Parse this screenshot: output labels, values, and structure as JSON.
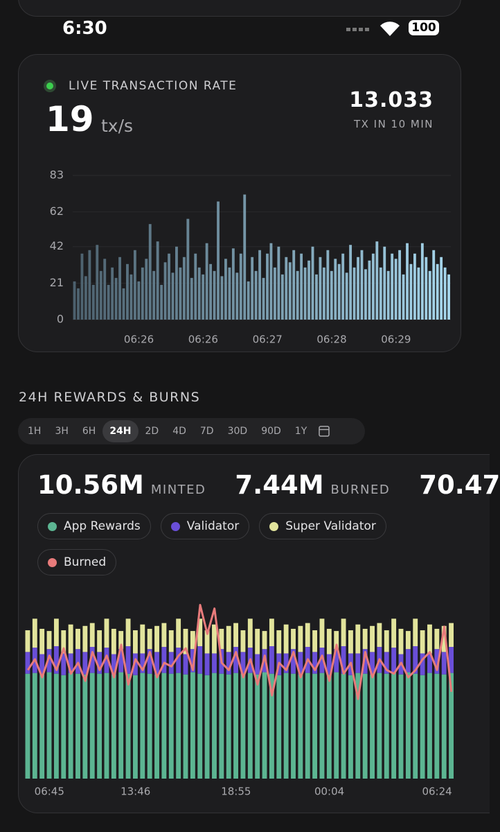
{
  "status_bar": {
    "time": "6:30",
    "battery": "100"
  },
  "live_card": {
    "title": "LIVE TRANSACTION RATE",
    "rate": "19",
    "rate_unit": "tx/s",
    "count": "13.033",
    "count_label": "TX IN 10 MIN"
  },
  "section_title": "24H REWARDS & BURNS",
  "tabs": {
    "items": [
      "1H",
      "3H",
      "6H",
      "24H",
      "2D",
      "4D",
      "7D",
      "30D",
      "90D",
      "1Y"
    ],
    "selected": 3
  },
  "stats": [
    {
      "value": "10.56M",
      "label": "MINTED"
    },
    {
      "value": "7.44M",
      "label": "BURNED"
    },
    {
      "value": "70.47"
    }
  ],
  "chart_data": [
    {
      "type": "bar",
      "colors": [
        "#4c606d",
        "#a6d6ec"
      ],
      "grid": true,
      "ylim": [
        0,
        83
      ],
      "yticks": [
        0,
        21,
        42,
        62,
        83
      ],
      "categories": [
        null,
        null,
        null,
        null,
        null,
        null,
        null,
        null,
        null,
        null,
        null,
        null,
        null,
        null,
        null,
        null,
        null,
        "06:26",
        null,
        null,
        null,
        null,
        null,
        null,
        null,
        null,
        null,
        null,
        null,
        null,
        null,
        null,
        null,
        null,
        "06:26",
        null,
        null,
        null,
        null,
        null,
        null,
        null,
        null,
        null,
        null,
        null,
        null,
        null,
        null,
        null,
        null,
        "06:27",
        null,
        null,
        null,
        null,
        null,
        null,
        null,
        null,
        null,
        null,
        null,
        null,
        null,
        null,
        null,
        null,
        "06:28",
        null,
        null,
        null,
        null,
        null,
        null,
        null,
        null,
        null,
        null,
        null,
        null,
        null,
        null,
        null,
        null,
        "06:29",
        null,
        null,
        null,
        null,
        null,
        null,
        null,
        null,
        null,
        null,
        null,
        null,
        null,
        null
      ],
      "values": [
        22,
        18,
        38,
        25,
        40,
        20,
        43,
        28,
        35,
        20,
        30,
        24,
        36,
        18,
        32,
        26,
        40,
        22,
        30,
        35,
        55,
        28,
        45,
        20,
        33,
        38,
        27,
        42,
        30,
        36,
        58,
        24,
        38,
        30,
        26,
        44,
        32,
        28,
        68,
        25,
        35,
        30,
        41,
        27,
        38,
        72,
        22,
        36,
        28,
        40,
        24,
        38,
        44,
        30,
        42,
        26,
        36,
        33,
        40,
        28,
        38,
        30,
        34,
        42,
        26,
        36,
        30,
        40,
        28,
        35,
        32,
        38,
        27,
        43,
        30,
        36,
        40,
        29,
        34,
        38,
        45,
        30,
        42,
        28,
        38,
        35,
        40,
        26,
        44,
        32,
        38,
        30,
        44,
        36,
        28,
        40,
        32,
        36,
        30,
        26
      ]
    },
    {
      "type": "stacked_bar",
      "categories": [
        null,
        null,
        null,
        "06:45",
        null,
        null,
        null,
        null,
        null,
        null,
        null,
        null,
        null,
        null,
        null,
        "13:46",
        null,
        null,
        null,
        null,
        null,
        null,
        null,
        null,
        null,
        null,
        null,
        null,
        null,
        "18:55",
        null,
        null,
        null,
        null,
        null,
        null,
        null,
        null,
        null,
        null,
        null,
        null,
        "00:04",
        null,
        null,
        null,
        null,
        null,
        null,
        null,
        null,
        null,
        null,
        null,
        null,
        null,
        null,
        "06:24",
        null,
        null
      ],
      "series": [
        {
          "name": "App Rewards",
          "color": "#5cb592",
          "values": [
            145,
            146,
            144,
            147,
            145,
            143,
            146,
            145,
            144,
            146,
            145,
            146,
            144,
            147,
            145,
            143,
            146,
            145,
            144,
            146,
            145,
            146,
            144,
            147,
            145,
            143,
            146,
            145,
            144,
            146,
            145,
            146,
            144,
            147,
            145,
            143,
            146,
            145,
            144,
            146,
            145,
            146,
            144,
            147,
            145,
            143,
            146,
            145,
            144,
            146,
            145,
            146,
            144,
            147,
            145,
            143,
            146,
            145,
            144,
            146
          ]
        },
        {
          "name": "Validator",
          "color": "#6a4fd8",
          "values": [
            30,
            35,
            28,
            32,
            38,
            30,
            27,
            34,
            31,
            36,
            30,
            35,
            28,
            32,
            38,
            30,
            27,
            34,
            31,
            36,
            30,
            35,
            28,
            32,
            38,
            30,
            27,
            34,
            31,
            36,
            30,
            35,
            28,
            32,
            38,
            30,
            27,
            34,
            31,
            36,
            30,
            35,
            28,
            32,
            38,
            30,
            27,
            34,
            31,
            36,
            30,
            35,
            28,
            32,
            38,
            30,
            27,
            34,
            31,
            36
          ]
        },
        {
          "name": "Super Validator",
          "color": "#e2e49c",
          "values": [
            30,
            40,
            35,
            25,
            38,
            32,
            40,
            28,
            36,
            33,
            30,
            40,
            35,
            25,
            38,
            32,
            40,
            28,
            36,
            33,
            30,
            40,
            35,
            25,
            38,
            32,
            40,
            28,
            36,
            33,
            30,
            40,
            35,
            25,
            38,
            32,
            40,
            28,
            36,
            33,
            30,
            40,
            35,
            25,
            38,
            32,
            40,
            28,
            36,
            33,
            30,
            40,
            35,
            25,
            38,
            32,
            40,
            28,
            36,
            33
          ]
        },
        {
          "name": "Burned",
          "color": "#e87b7b",
          "line": true,
          "values": [
            150,
            165,
            140,
            170,
            150,
            180,
            145,
            160,
            135,
            175,
            150,
            170,
            140,
            185,
            130,
            165,
            150,
            175,
            140,
            160,
            155,
            170,
            180,
            150,
            240,
            200,
            235,
            160,
            150,
            175,
            140,
            165,
            130,
            170,
            115,
            160,
            150,
            175,
            140,
            165,
            150,
            170,
            135,
            185,
            145,
            160,
            110,
            175,
            140,
            165,
            150,
            145,
            160,
            140,
            150,
            165,
            175,
            150,
            210,
            120
          ]
        }
      ]
    }
  ]
}
